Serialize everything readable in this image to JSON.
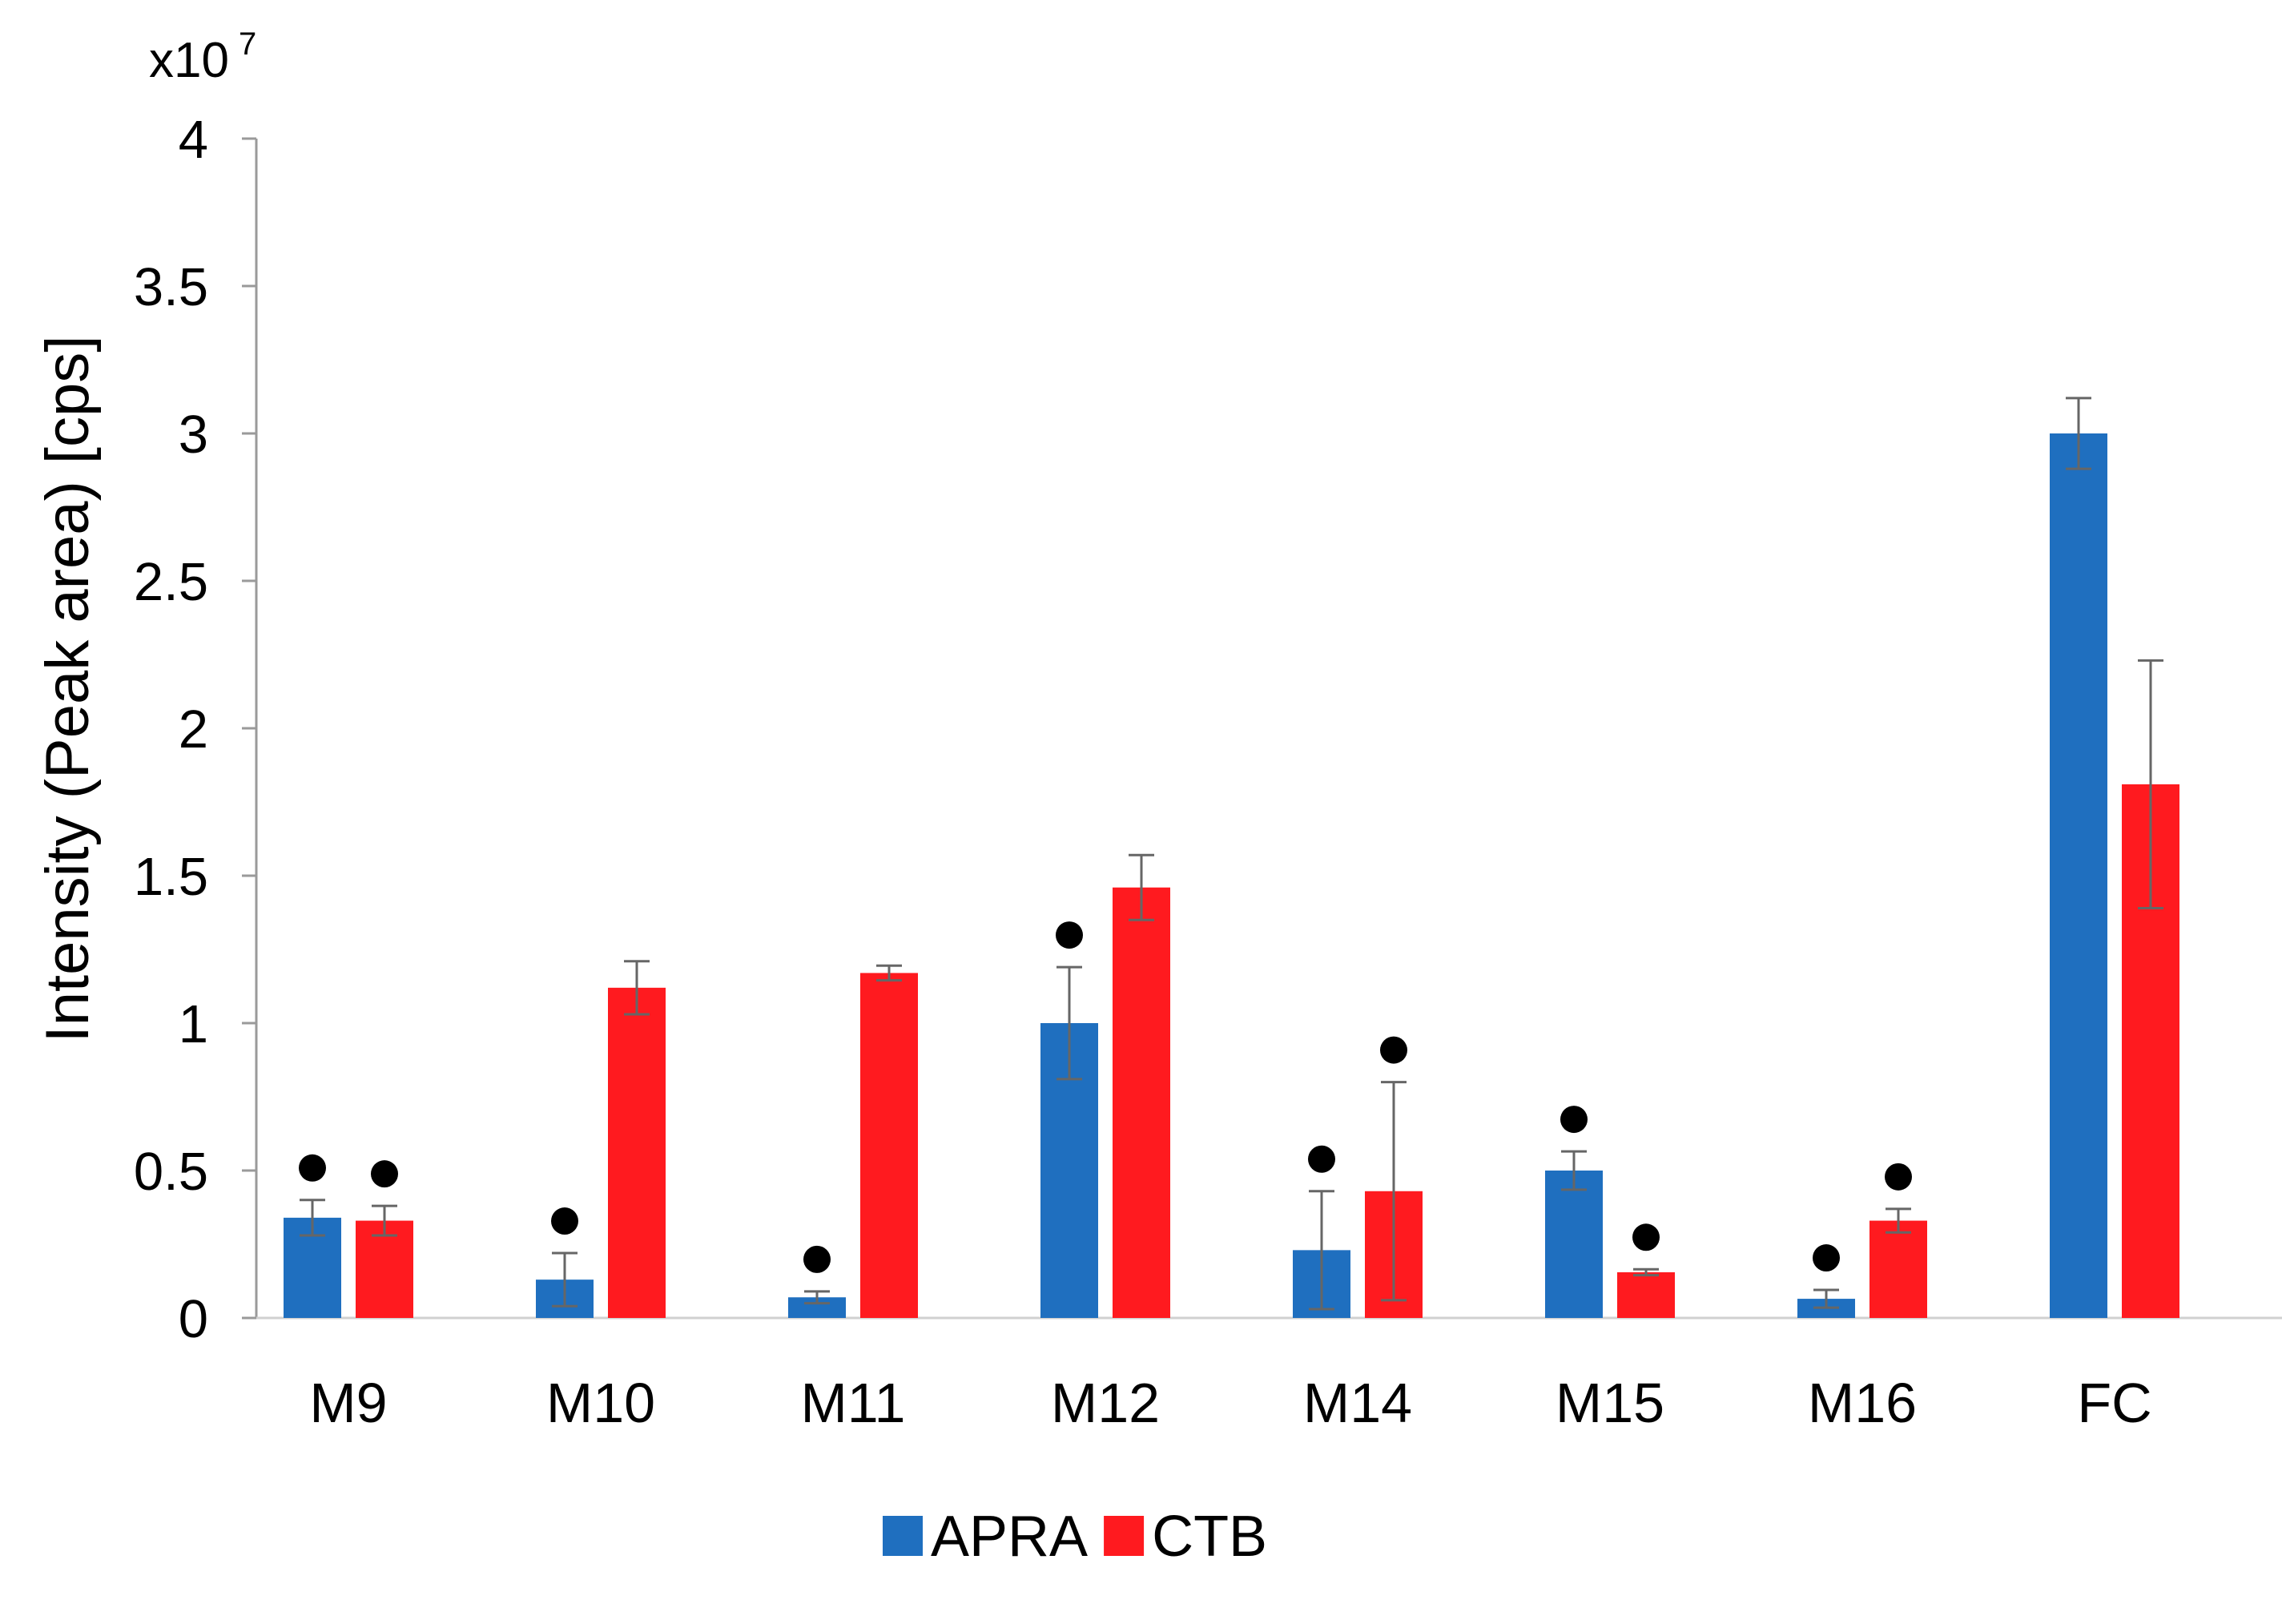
{
  "chart_data": {
    "type": "bar",
    "title": "",
    "xlabel": "",
    "ylabel": "Intensity (Peak area) [cps]",
    "y_multiplier": {
      "base": "x10",
      "exponent": "7"
    },
    "ylim": [
      0,
      4
    ],
    "yticks": [
      0,
      0.5,
      1,
      1.5,
      2,
      2.5,
      3,
      3.5,
      4
    ],
    "ytick_labels": [
      "0",
      "0.5",
      "1",
      "1.5",
      "2",
      "2.5",
      "3",
      "3.5",
      "4"
    ],
    "grid": false,
    "legend_position": "bottom-center",
    "categories": [
      "M9",
      "M10",
      "M11",
      "M12",
      "M14",
      "M15",
      "M16",
      "FC"
    ],
    "series": [
      {
        "name": "APRA",
        "color": "#1F6FBF",
        "values": [
          0.34,
          0.13,
          0.07,
          1.0,
          0.23,
          0.5,
          0.065,
          3.0
        ],
        "errors": [
          0.06,
          0.09,
          0.02,
          0.19,
          0.2,
          0.065,
          0.03,
          0.12
        ],
        "markers": [
          true,
          true,
          true,
          true,
          true,
          true,
          true,
          false
        ]
      },
      {
        "name": "CTB",
        "color": "#FF1A1F",
        "values": [
          0.33,
          1.12,
          1.17,
          1.46,
          0.43,
          0.155,
          0.33,
          1.81
        ],
        "errors": [
          0.05,
          0.09,
          0.025,
          0.11,
          0.37,
          0.01,
          0.04,
          0.42
        ],
        "markers": [
          true,
          false,
          false,
          false,
          true,
          true,
          true,
          false
        ]
      }
    ]
  }
}
